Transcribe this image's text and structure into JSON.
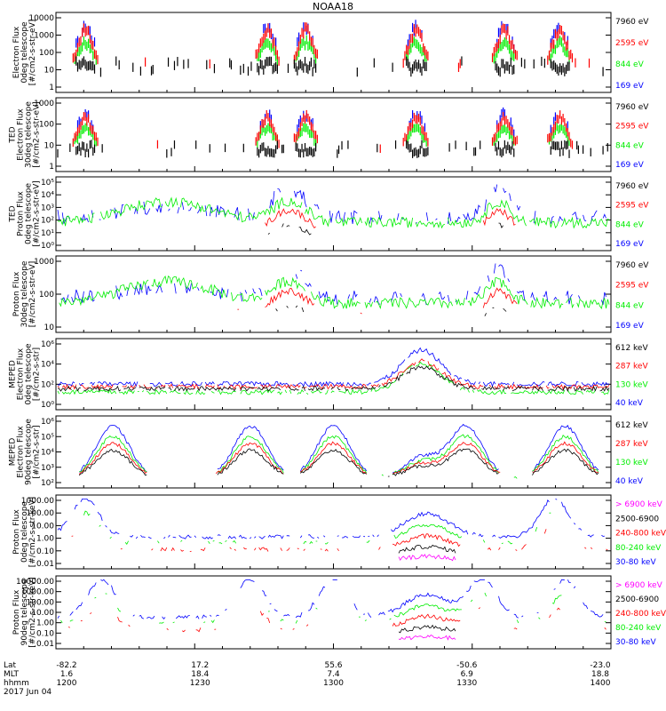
{
  "title": "NOAA18",
  "date": "2017 Jun 04",
  "orbit_axis": {
    "row_labels": [
      "Lat",
      "MLT",
      "hhmm"
    ],
    "columns": [
      {
        "lat": "-82.2",
        "mlt": "1.6",
        "hhmm": "1200"
      },
      {
        "lat": "17.2",
        "mlt": "18.4",
        "hhmm": "1230"
      },
      {
        "lat": "55.6",
        "mlt": "7.4",
        "hhmm": "1300"
      },
      {
        "lat": "-50.6",
        "mlt": "6.9",
        "hhmm": "1330"
      },
      {
        "lat": "-23.0",
        "mlt": "18.8",
        "hhmm": "1400"
      }
    ]
  },
  "colors": {
    "black": "#000000",
    "red": "#ff0000",
    "green": "#00ee00",
    "blue": "#0000ff",
    "magenta": "#ff00ff"
  },
  "chart_data": [
    {
      "type": "scatter",
      "ylabel_lines": [
        "Electron Flux",
        "0deg telescope",
        "[#/cm2-s-str-eV]"
      ],
      "ytick_labels": [
        "10000",
        "1000",
        "100",
        "10",
        "1"
      ],
      "yscale": "log",
      "ylim": [
        1,
        10000
      ],
      "legend": [
        {
          "label": "7960 eV",
          "color": "black"
        },
        {
          "label": "2595 eV",
          "color": "red"
        },
        {
          "label": "844 eV",
          "color": "green"
        },
        {
          "label": "169 eV",
          "color": "blue"
        }
      ]
    },
    {
      "type": "scatter",
      "ylabel_lines": [
        "TED",
        "Electron Flux",
        "30deg telescope",
        "[#/cm2-s-str-eV]"
      ],
      "ytick_labels": [
        "1000",
        "100",
        "10",
        "1"
      ],
      "yscale": "log",
      "ylim": [
        1,
        1000
      ],
      "legend": [
        {
          "label": "7960 eV",
          "color": "black"
        },
        {
          "label": "2595 eV",
          "color": "red"
        },
        {
          "label": "844 eV",
          "color": "green"
        },
        {
          "label": "169 eV",
          "color": "blue"
        }
      ]
    },
    {
      "type": "line",
      "ylabel_lines": [
        "TED",
        "Proton Flux",
        "0deg telescope",
        "[#/cm2-s-str-eV]"
      ],
      "ytick_labels": [
        "10⁵",
        "10⁴",
        "10³",
        "10²",
        "10¹",
        "10⁰"
      ],
      "yscale": "log",
      "ylim": [
        1,
        100000
      ],
      "legend": [
        {
          "label": "7960 eV",
          "color": "black"
        },
        {
          "label": "2595 eV",
          "color": "red"
        },
        {
          "label": "844 eV",
          "color": "green"
        },
        {
          "label": "169 eV",
          "color": "blue"
        }
      ]
    },
    {
      "type": "line",
      "ylabel_lines": [
        "Proton Flux",
        "30deg telescope",
        "[#/cm2-s-str-eV]"
      ],
      "ytick_labels": [
        "1000",
        "100",
        "10"
      ],
      "yscale": "log",
      "ylim": [
        1,
        10000
      ],
      "legend": [
        {
          "label": "7960 eV",
          "color": "black"
        },
        {
          "label": "2595 eV",
          "color": "red"
        },
        {
          "label": "844 eV",
          "color": "green"
        },
        {
          "label": "169 eV",
          "color": "blue"
        }
      ]
    },
    {
      "type": "line",
      "ylabel_lines": [
        "MEPED",
        "Electron Flux",
        "0deg telescope",
        "[#/cm2-s-str]"
      ],
      "ytick_labels": [
        "10⁶",
        "10⁴",
        "10²",
        "10⁰"
      ],
      "yscale": "log",
      "ylim": [
        1,
        1000000
      ],
      "legend": [
        {
          "label": "612 keV",
          "color": "black"
        },
        {
          "label": "287 keV",
          "color": "red"
        },
        {
          "label": "130 keV",
          "color": "green"
        },
        {
          "label": "40 keV",
          "color": "blue"
        }
      ]
    },
    {
      "type": "line",
      "ylabel_lines": [
        "MEPED",
        "Electron Flux",
        "90deg telescope",
        "[#/cm2-s-str]"
      ],
      "ytick_labels": [
        "10⁶",
        "10⁵",
        "10⁴",
        "10³",
        "10²"
      ],
      "yscale": "log",
      "ylim": [
        10,
        1000000
      ],
      "legend": [
        {
          "label": "612 keV",
          "color": "black"
        },
        {
          "label": "287 keV",
          "color": "red"
        },
        {
          "label": "130 keV",
          "color": "green"
        },
        {
          "label": "40 keV",
          "color": "blue"
        }
      ]
    },
    {
      "type": "line",
      "ylabel_lines": [
        "Proton Flux",
        "0deg telescope",
        "[#/cm2-s-str-keV]"
      ],
      "ytick_labels": [
        "1000.00",
        "100.00",
        "10.00",
        "1.00",
        "0.10",
        "0.01"
      ],
      "yscale": "log",
      "ylim": [
        0.01,
        1000
      ],
      "legend": [
        {
          "label": "> 6900 keV",
          "color": "magenta"
        },
        {
          "label": "2500-6900",
          "color": "black"
        },
        {
          "label": "240-800 keV",
          "color": "red"
        },
        {
          "label": "80-240 keV",
          "color": "green"
        },
        {
          "label": "30-80 keV",
          "color": "blue"
        }
      ]
    },
    {
      "type": "line",
      "ylabel_lines": [
        "Proton Flux",
        "90deg telescope",
        "[#/cm2-s-str-keV]"
      ],
      "ytick_labels": [
        "10000.00",
        "1000.00",
        "100.00",
        "10.00",
        "1.00",
        "0.10",
        "0.01"
      ],
      "yscale": "log",
      "ylim": [
        0.01,
        10000
      ],
      "legend": [
        {
          "label": "> 6900 keV",
          "color": "magenta"
        },
        {
          "label": "2500-6900",
          "color": "black"
        },
        {
          "label": "240-800 keV",
          "color": "red"
        },
        {
          "label": "80-240 keV",
          "color": "green"
        },
        {
          "label": "30-80 keV",
          "color": "blue"
        }
      ]
    }
  ]
}
